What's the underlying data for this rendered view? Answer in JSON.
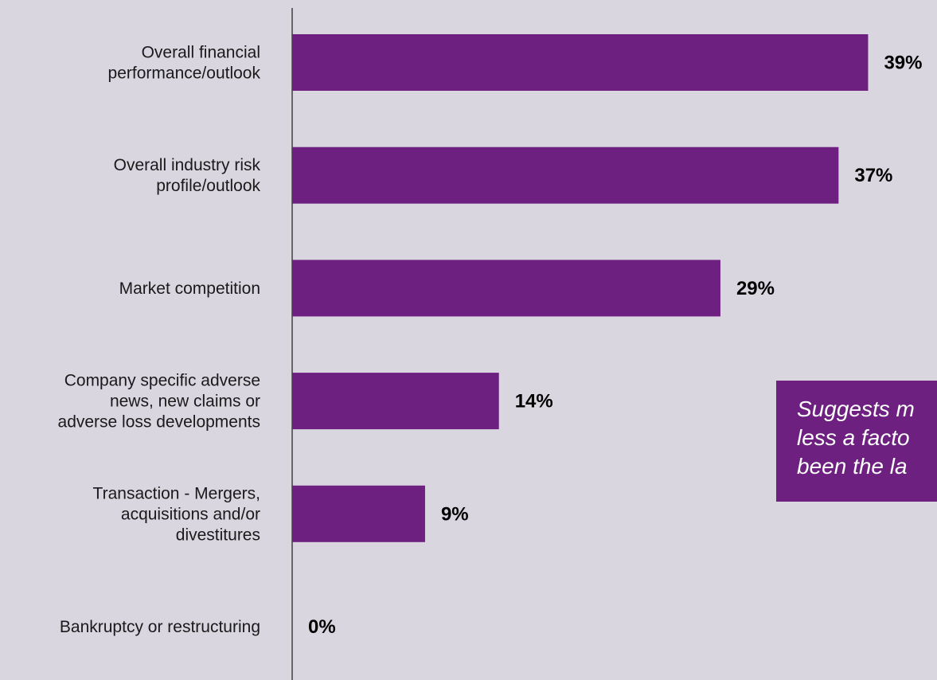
{
  "chart_data": {
    "type": "bar",
    "orientation": "horizontal",
    "categories": [
      [
        "Overall financial",
        "performance/outlook"
      ],
      [
        "Overall industry risk",
        "profile/outlook"
      ],
      [
        "Market competition"
      ],
      [
        "Company specific adverse",
        "news, new claims or",
        "adverse loss developments"
      ],
      [
        "Transaction - Mergers,",
        "acquisitions and/or",
        "divestitures"
      ],
      [
        "Bankruptcy or restructuring"
      ]
    ],
    "values": [
      39,
      37,
      29,
      14,
      9,
      0
    ],
    "value_labels": [
      "39%",
      "37%",
      "29%",
      "14%",
      "9%",
      "0%"
    ],
    "xlim": [
      0,
      45
    ],
    "grid": false,
    "bar_color": "#6d2080"
  },
  "note": {
    "lines": [
      "Suggests m",
      "less a facto",
      "been the la"
    ],
    "background": "#6d2080",
    "text_color": "#ffffff"
  }
}
